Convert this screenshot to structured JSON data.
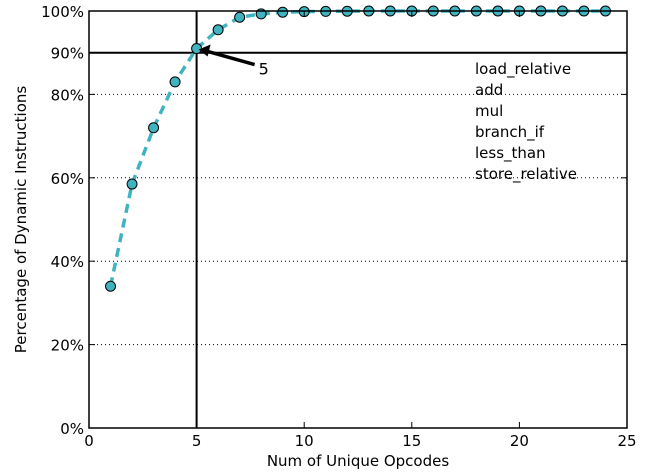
{
  "chart_data": {
    "type": "line",
    "xlabel": "Num of Unique Opcodes",
    "ylabel": "Percentage of Dynamic Instructions",
    "xlim": [
      0,
      25
    ],
    "ylim": [
      0,
      100
    ],
    "x_ticks": [
      0,
      5,
      10,
      15,
      20,
      25
    ],
    "x_tick_labels": [
      "0",
      "5",
      "10",
      "15",
      "20",
      "25"
    ],
    "y_ticks": [
      0,
      20,
      40,
      60,
      80,
      90,
      100
    ],
    "y_tick_labels": [
      "0%",
      "20%",
      "40%",
      "60%",
      "80%",
      "90%",
      "100%"
    ],
    "dotted_grid_y": [
      20,
      40,
      60,
      80
    ],
    "threshold_y": 90,
    "threshold_x": 5,
    "series": [
      {
        "color": "#3fb3bf",
        "x": [
          1,
          2,
          3,
          4,
          5,
          6,
          7,
          8,
          9,
          10,
          11,
          12,
          13,
          14,
          15,
          16,
          17,
          18,
          19,
          20,
          21,
          22,
          23,
          24
        ],
        "y": [
          34,
          58.5,
          72,
          83,
          91,
          95.5,
          98.5,
          99.3,
          99.7,
          99.85,
          99.9,
          99.95,
          100,
          100,
          100,
          100,
          100,
          100,
          100,
          100,
          100,
          100,
          100,
          100
        ]
      }
    ],
    "annotation": {
      "text": "5",
      "x": 5,
      "y": 91
    },
    "legend_text": [
      "load_relative",
      "add",
      "mul",
      "branch_if",
      "less_than",
      "store_relative"
    ]
  }
}
